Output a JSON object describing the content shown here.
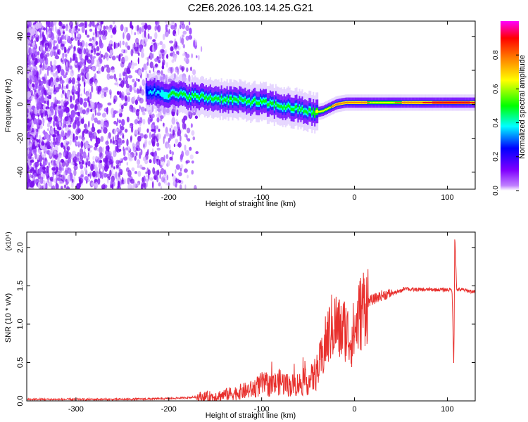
{
  "figure": {
    "title": "C2E6.2026.103.14.25.G21"
  },
  "chart_data": [
    {
      "type": "heatmap",
      "xlabel": "Height of straight line (km)",
      "ylabel": "Frequency (Hz)",
      "xlim": [
        -353,
        130
      ],
      "ylim": [
        -50,
        49
      ],
      "xticks": [
        -300,
        -200,
        -100,
        0,
        100
      ],
      "yticks": [
        -40,
        -20,
        0,
        20,
        40
      ],
      "colorbar": {
        "label": "Normalized spectral amplitude",
        "range": [
          0.0,
          1.0
        ],
        "ticks": [
          "0.0",
          "0.2",
          "0.4",
          "0.6",
          "0.8"
        ],
        "colors": [
          "#ffffff",
          "#8000ff",
          "#0000ff",
          "#00ffff",
          "#00ff00",
          "#ffff00",
          "#ff8000",
          "#ff0000",
          "#ff00ff"
        ]
      },
      "ridge": {
        "height_km": [
          -225,
          -200,
          -180,
          -160,
          -140,
          -120,
          -100,
          -80,
          -60,
          -45,
          -35,
          -20,
          -10,
          0,
          20,
          50,
          80,
          100,
          130
        ],
        "frequency_hz": [
          8,
          6,
          5,
          4,
          3,
          2,
          1,
          -1,
          -3,
          -5,
          -4,
          0,
          1,
          1,
          1,
          1,
          1,
          1,
          1
        ],
        "peak_amplitude": [
          0.3,
          0.45,
          0.5,
          0.5,
          0.45,
          0.45,
          0.45,
          0.45,
          0.5,
          0.55,
          0.6,
          0.75,
          0.8,
          0.8,
          0.65,
          0.7,
          0.85,
          0.9,
          0.85
        ]
      }
    },
    {
      "type": "line",
      "xlabel": "Height of straight line (km)",
      "ylabel": "SNR (10 * v/v)",
      "y_multiplier": "(x10⁴)",
      "xlim": [
        -353,
        130
      ],
      "ylim": [
        0,
        2.2
      ],
      "xticks": [
        -300,
        -200,
        -100,
        0,
        100
      ],
      "yticks": [
        "0.0",
        "0.5",
        "1.0",
        "1.5",
        "2.0"
      ],
      "color": "#e8302d",
      "series": [
        {
          "x": [
            -353,
            -300,
            -250,
            -200,
            -170,
            -150,
            -130,
            -110,
            -100,
            -90,
            -80,
            -70,
            -60,
            -50,
            -45,
            -40,
            -35,
            -30,
            -25,
            -20,
            -15,
            -10,
            -5,
            0,
            5,
            10,
            15,
            20,
            30,
            40,
            50,
            55,
            60,
            70,
            80,
            90,
            100,
            105,
            107,
            108,
            110,
            115,
            120,
            130
          ],
          "values": [
            0.02,
            0.02,
            0.02,
            0.03,
            0.05,
            0.06,
            0.1,
            0.15,
            0.22,
            0.2,
            0.25,
            0.2,
            0.22,
            0.25,
            0.3,
            0.4,
            0.55,
            0.8,
            0.95,
            1.0,
            0.9,
            0.95,
            0.8,
            0.9,
            1.1,
            1.25,
            1.3,
            1.32,
            1.38,
            1.4,
            1.43,
            1.48,
            1.45,
            1.45,
            1.45,
            1.45,
            1.45,
            1.45,
            0.45,
            2.2,
            1.45,
            1.45,
            1.44,
            1.42
          ]
        }
      ]
    }
  ]
}
